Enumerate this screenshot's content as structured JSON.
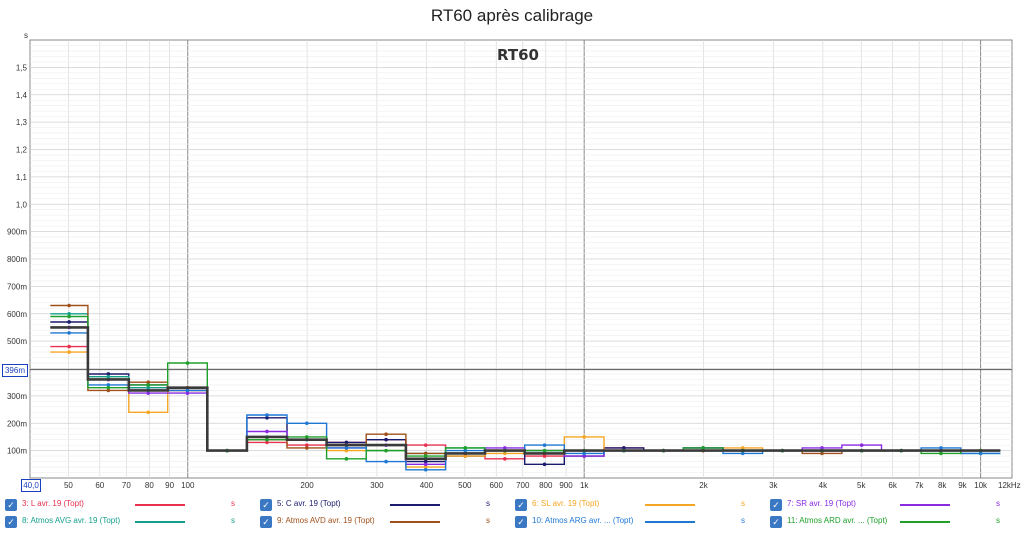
{
  "title": "RT60 après calibrage",
  "inner_title": "RT60",
  "y_unit": "s",
  "x_unit": "12kHz",
  "x_min_box": "40,0",
  "cursor_readout": "396m",
  "y_ticks": [
    {
      "v": 0.1,
      "label": "100m"
    },
    {
      "v": 0.2,
      "label": "200m"
    },
    {
      "v": 0.3,
      "label": "300m"
    },
    {
      "v": 0.4,
      "label": "400m"
    },
    {
      "v": 0.5,
      "label": "500m"
    },
    {
      "v": 0.6,
      "label": "600m"
    },
    {
      "v": 0.7,
      "label": "700m"
    },
    {
      "v": 0.8,
      "label": "800m"
    },
    {
      "v": 0.9,
      "label": "900m"
    },
    {
      "v": 1.0,
      "label": "1,0"
    },
    {
      "v": 1.1,
      "label": "1,1"
    },
    {
      "v": 1.2,
      "label": "1,2"
    },
    {
      "v": 1.3,
      "label": "1,3"
    },
    {
      "v": 1.4,
      "label": "1,4"
    },
    {
      "v": 1.5,
      "label": "1,5"
    }
  ],
  "x_ticks": [
    {
      "f": 50,
      "label": "50"
    },
    {
      "f": 60,
      "label": "60"
    },
    {
      "f": 70,
      "label": "70"
    },
    {
      "f": 80,
      "label": "80"
    },
    {
      "f": 90,
      "label": "90"
    },
    {
      "f": 100,
      "label": "100"
    },
    {
      "f": 200,
      "label": "200"
    },
    {
      "f": 300,
      "label": "300"
    },
    {
      "f": 400,
      "label": "400"
    },
    {
      "f": 500,
      "label": "500"
    },
    {
      "f": 600,
      "label": "600"
    },
    {
      "f": 700,
      "label": "700"
    },
    {
      "f": 800,
      "label": "800"
    },
    {
      "f": 900,
      "label": "900"
    },
    {
      "f": 1000,
      "label": "1k"
    },
    {
      "f": 2000,
      "label": "2k"
    },
    {
      "f": 3000,
      "label": "3k"
    },
    {
      "f": 4000,
      "label": "4k"
    },
    {
      "f": 5000,
      "label": "5k"
    },
    {
      "f": 6000,
      "label": "6k"
    },
    {
      "f": 7000,
      "label": "7k"
    },
    {
      "f": 8000,
      "label": "8k"
    },
    {
      "f": 9000,
      "label": "9k"
    },
    {
      "f": 10000,
      "label": "10k"
    }
  ],
  "legend": [
    {
      "label": "3: L avr. 19 (Topt)",
      "color": "#e8304f",
      "unit": "s"
    },
    {
      "label": "5: C avr. 19 (Topt)",
      "color": "#1a1a6e",
      "unit": "s"
    },
    {
      "label": "6: SL avr. 19 (Topt)",
      "color": "#f5a623",
      "unit": "s"
    },
    {
      "label": "7: SR avr. 19 (Topt)",
      "color": "#8a2be2",
      "unit": "s"
    },
    {
      "label": "8: Atmos AVG avr. 19 (Topt)",
      "color": "#15a08c",
      "unit": "s"
    },
    {
      "label": "9: Atmos AVD avr. 19 (Topt)",
      "color": "#a0501a",
      "unit": "s"
    },
    {
      "label": "10: Atmos ARG avr. ... (Topt)",
      "color": "#1f77d4",
      "unit": "s"
    },
    {
      "label": "11: Atmos ARD avr. ... (Topt)",
      "color": "#1fa02a",
      "unit": "s"
    }
  ],
  "chart_data": {
    "type": "line",
    "title": "RT60 après calibrage",
    "xlabel": "",
    "ylabel": "s",
    "x_scale": "log",
    "xlim": [
      40,
      12000
    ],
    "ylim": [
      0,
      1.6
    ],
    "cursor_y": 0.396,
    "band_edges": [
      45,
      56,
      71,
      89,
      112,
      141,
      178,
      224,
      282,
      355,
      447,
      562,
      708,
      891,
      1122,
      1413,
      1778,
      2239,
      2818,
      3548,
      4467,
      5623,
      7079,
      8913,
      11220
    ],
    "series": [
      {
        "name": "3: L avr. 19 (Topt)",
        "color": "#e8304f",
        "values": [
          0.48,
          0.36,
          0.33,
          0.32,
          0.1,
          0.13,
          0.12,
          0.13,
          0.14,
          0.12,
          0.09,
          0.07,
          0.08,
          0.1,
          0.11,
          0.1,
          0.1,
          0.1,
          0.1,
          0.1,
          0.1,
          0.1,
          0.1,
          0.1
        ]
      },
      {
        "name": "5: C avr. 19 (Topt)",
        "color": "#1a1a6e",
        "values": [
          0.57,
          0.38,
          0.34,
          0.32,
          0.1,
          0.22,
          0.14,
          0.13,
          0.14,
          0.06,
          0.08,
          0.1,
          0.05,
          0.08,
          0.11,
          0.1,
          0.11,
          0.1,
          0.1,
          0.1,
          0.1,
          0.1,
          0.1,
          0.1
        ]
      },
      {
        "name": "6: SL avr. 19 (Topt)",
        "color": "#f5a623",
        "values": [
          0.46,
          0.37,
          0.24,
          0.32,
          0.1,
          0.14,
          0.14,
          0.1,
          0.1,
          0.04,
          0.08,
          0.09,
          0.1,
          0.15,
          0.1,
          0.1,
          0.11,
          0.11,
          0.1,
          0.1,
          0.1,
          0.1,
          0.1,
          0.1
        ]
      },
      {
        "name": "7: SR avr. 19 (Topt)",
        "color": "#8a2be2",
        "values": [
          0.55,
          0.36,
          0.31,
          0.31,
          0.1,
          0.17,
          0.14,
          0.11,
          0.12,
          0.05,
          0.09,
          0.11,
          0.1,
          0.08,
          0.1,
          0.1,
          0.11,
          0.1,
          0.1,
          0.11,
          0.12,
          0.1,
          0.1,
          0.1
        ]
      },
      {
        "name": "8: Atmos AVG avr. 19 (Topt)",
        "color": "#15a08c",
        "values": [
          0.6,
          0.37,
          0.33,
          0.33,
          0.1,
          0.15,
          0.14,
          0.12,
          0.1,
          0.09,
          0.11,
          0.1,
          0.1,
          0.1,
          0.1,
          0.1,
          0.1,
          0.1,
          0.1,
          0.1,
          0.1,
          0.1,
          0.1,
          0.09
        ]
      },
      {
        "name": "9: Atmos AVD avr. 19 (Topt)",
        "color": "#a0501a",
        "values": [
          0.63,
          0.32,
          0.35,
          0.33,
          0.1,
          0.14,
          0.11,
          0.12,
          0.16,
          0.09,
          0.09,
          0.1,
          0.09,
          0.1,
          0.1,
          0.1,
          0.1,
          0.1,
          0.1,
          0.09,
          0.1,
          0.1,
          0.1,
          0.1
        ]
      },
      {
        "name": "10: Atmos ARG avr. ... (Topt)",
        "color": "#1f77d4",
        "values": [
          0.53,
          0.34,
          0.32,
          0.32,
          0.1,
          0.23,
          0.2,
          0.11,
          0.06,
          0.03,
          0.1,
          0.1,
          0.12,
          0.09,
          0.1,
          0.1,
          0.11,
          0.09,
          0.1,
          0.1,
          0.1,
          0.1,
          0.11,
          0.09
        ]
      },
      {
        "name": "11: Atmos ARD avr. ... (Topt)",
        "color": "#1fa02a",
        "values": [
          0.59,
          0.33,
          0.34,
          0.42,
          0.1,
          0.14,
          0.15,
          0.07,
          0.1,
          0.08,
          0.11,
          0.1,
          0.1,
          0.1,
          0.1,
          0.1,
          0.11,
          0.1,
          0.1,
          0.1,
          0.1,
          0.1,
          0.09,
          0.1
        ]
      },
      {
        "name": "",
        "color": "#3a3a3a",
        "values": [
          0.55,
          0.36,
          0.32,
          0.33,
          0.1,
          0.15,
          0.14,
          0.12,
          0.12,
          0.07,
          0.09,
          0.1,
          0.09,
          0.1,
          0.1,
          0.1,
          0.1,
          0.1,
          0.1,
          0.1,
          0.1,
          0.1,
          0.1,
          0.1
        ]
      }
    ]
  }
}
